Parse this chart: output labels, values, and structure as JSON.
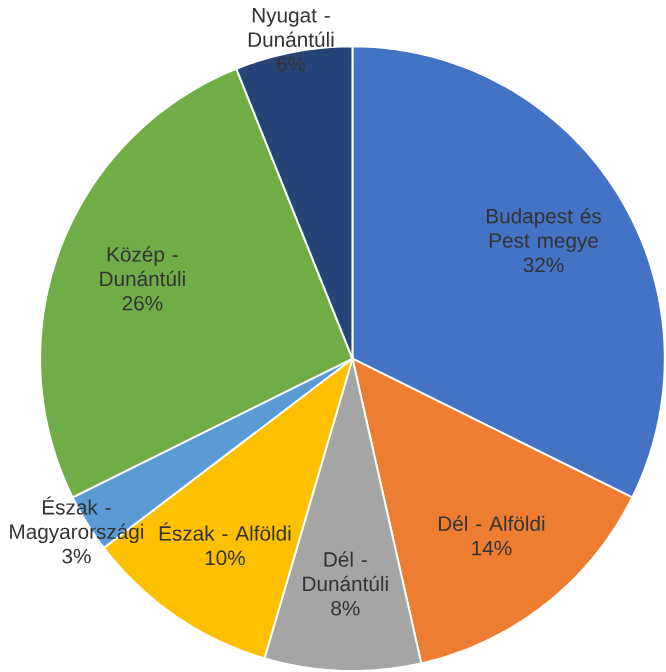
{
  "chart_data": {
    "type": "pie",
    "categories": [
      "Budapest és Pest megye",
      "Dél - Alföldi",
      "Dél - Dunántúli",
      "Észak - Alföldi",
      "Észak - Magyarországi",
      "Közép - Dunántúli",
      "Nyugat - Dunántúli"
    ],
    "values": [
      32,
      14,
      8,
      10,
      3,
      26,
      6
    ],
    "colors": [
      "#4472c4",
      "#ed7d31",
      "#a5a5a5",
      "#ffc000",
      "#5b9bd5",
      "#70ad47",
      "#264478"
    ],
    "value_labels": [
      "32%",
      "14%",
      "8%",
      "10%",
      "3%",
      "26%",
      "6%"
    ]
  }
}
